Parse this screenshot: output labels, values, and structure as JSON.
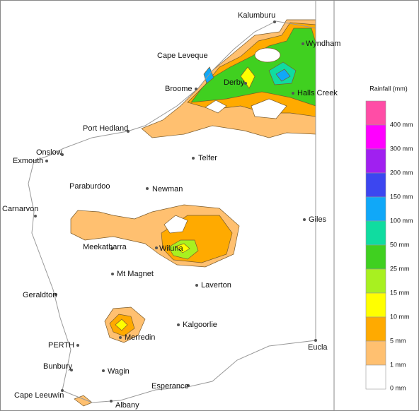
{
  "towns": [
    "Kalumburu",
    "Wyndham",
    "Cape Leveque",
    "Derby",
    "Broome",
    "Halls Creek",
    "Port Hedland",
    "Onslow",
    "Exmouth",
    "Telfer",
    "Paraburdoo",
    "Newman",
    "Carnarvon",
    "Giles",
    "Meekatharra",
    "Wiluna",
    "Mt Magnet",
    "Laverton",
    "Geraldton",
    "Kalgoorlie",
    "Merredin",
    "Eucla",
    "PERTH",
    "Bunbury",
    "Wagin",
    "Esperance",
    "Cape Leeuwin",
    "Albany"
  ],
  "legend": {
    "title": "Rainfall (mm)",
    "items": [
      {
        "label": "400 mm",
        "color": "#ff4da6"
      },
      {
        "label": "300 mm",
        "color": "#ff00ff"
      },
      {
        "label": "200 mm",
        "color": "#a020f0"
      },
      {
        "label": "150 mm",
        "color": "#3c46f0"
      },
      {
        "label": "100 mm",
        "color": "#10a8f8"
      },
      {
        "label": "50 mm",
        "color": "#10dca0"
      },
      {
        "label": "25 mm",
        "color": "#40d020"
      },
      {
        "label": "15 mm",
        "color": "#a8f020"
      },
      {
        "label": "10 mm",
        "color": "#ffff00"
      },
      {
        "label": "5 mm",
        "color": "#ffaa00"
      },
      {
        "label": "1 mm",
        "color": "#ffc070"
      },
      {
        "label": "0 mm",
        "color": "#ffffff"
      }
    ]
  }
}
